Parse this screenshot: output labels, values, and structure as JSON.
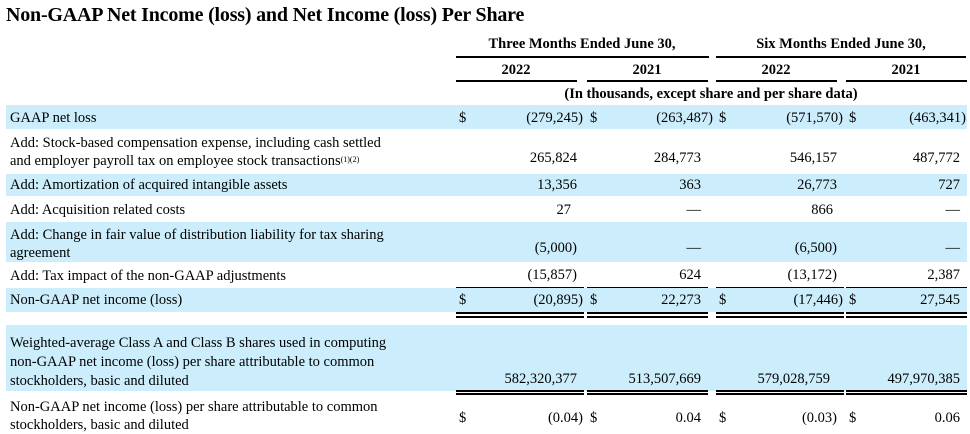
{
  "title": "Non-GAAP Net Income (loss) and Net Income (loss) Per Share",
  "header": {
    "group1": "Three Months Ended June 30,",
    "group2": "Six Months Ended June 30,",
    "years": [
      "2022",
      "2021",
      "2022",
      "2021"
    ],
    "units_note": "(In thousands, except share and per share data)"
  },
  "rows": [
    {
      "label": "GAAP net loss",
      "values": [
        "(279,245)",
        "(263,487)",
        "(571,570)",
        "(463,341)"
      ],
      "dollar": true
    },
    {
      "label_line1": "Add: Stock-based compensation expense, including cash settled",
      "label_line2": "and employer payroll tax on employee stock transactions",
      "footnote": "(1)(2)",
      "values": [
        "265,824",
        "284,773",
        "546,157",
        "487,772"
      ]
    },
    {
      "label": "Add: Amortization of acquired intangible assets",
      "values": [
        "13,356",
        "363",
        "26,773",
        "727"
      ]
    },
    {
      "label": "Add: Acquisition related costs",
      "values": [
        "27",
        "—",
        "866",
        "—"
      ]
    },
    {
      "label_line1": "Add: Change in fair value of distribution liability for tax sharing",
      "label_line2": "agreement",
      "values": [
        "(5,000)",
        "—",
        "(6,500)",
        "—"
      ]
    },
    {
      "label": "Add: Tax impact of the non-GAAP adjustments",
      "values": [
        "(15,857)",
        "624",
        "(13,172)",
        "2,387"
      ]
    },
    {
      "label": "Non-GAAP net income (loss)",
      "values": [
        "(20,895)",
        "22,273",
        "(17,446)",
        "27,545"
      ],
      "dollar": true
    },
    {
      "label_line1": "Weighted-average Class A and Class B shares used in computing",
      "label_line2": "non-GAAP net income (loss) per share attributable to common",
      "label_line3": "stockholders, basic and diluted",
      "values": [
        "582,320,377",
        "513,507,669",
        "579,028,759",
        "497,970,385"
      ]
    },
    {
      "label_line1": "Non-GAAP net income (loss) per share attributable to common",
      "label_line2": "stockholders, basic and diluted",
      "values": [
        "(0.04)",
        "0.04",
        "(0.03)",
        "0.06"
      ],
      "dollar": true
    }
  ],
  "currency_symbol": "$",
  "colors": {
    "shade": "#cceefc",
    "text": "#000000"
  }
}
